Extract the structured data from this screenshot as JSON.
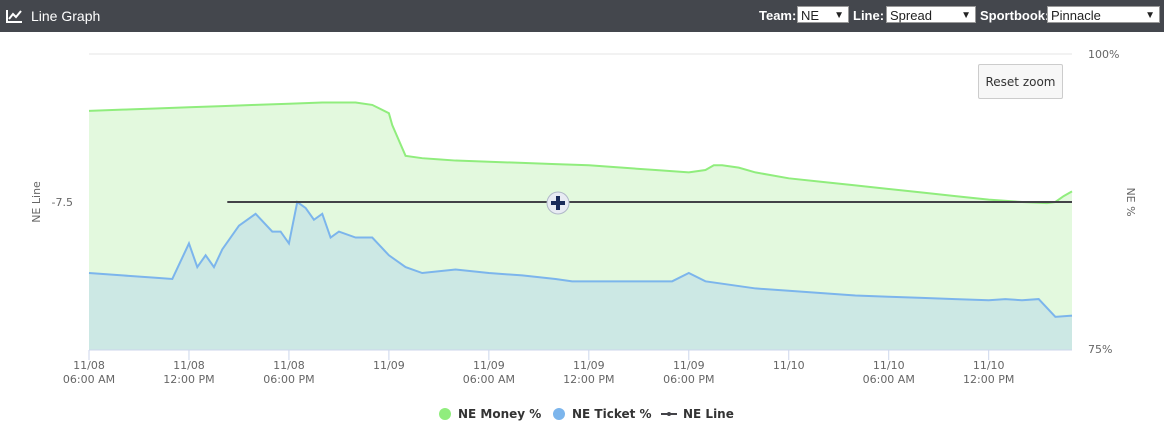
{
  "header": {
    "title": "Line Graph",
    "icon": "line-chart-icon",
    "team_label": "Team:",
    "team_value": "NE",
    "line_label": "Line:",
    "line_value": "Spread",
    "sportbook_label": "Sportbook:",
    "sportbook_value": "Pinnacle"
  },
  "reset_zoom_label": "Reset zoom",
  "chart_data": {
    "type": "area",
    "xlabel": "",
    "ylabel_left": "NE Line",
    "ylabel_right": "NE %",
    "left_ticks": [
      "-7.5"
    ],
    "right_ticks": [
      "100%",
      "75%"
    ],
    "right_ylim": [
      75,
      100
    ],
    "x_ticks": [
      {
        "date": "11/08",
        "time": "06:00 AM"
      },
      {
        "date": "11/08",
        "time": "12:00 PM"
      },
      {
        "date": "11/08",
        "time": "06:00 PM"
      },
      {
        "date": "11/09",
        "time": ""
      },
      {
        "date": "11/09",
        "time": "06:00 AM"
      },
      {
        "date": "11/09",
        "time": "12:00 PM"
      },
      {
        "date": "11/09",
        "time": "06:00 PM"
      },
      {
        "date": "11/10",
        "time": ""
      },
      {
        "date": "11/10",
        "time": "06:00 AM"
      },
      {
        "date": "11/10",
        "time": "12:00 PM"
      }
    ],
    "series": [
      {
        "name": "NE Money %",
        "color": "#90ed7d",
        "x": [
          0,
          2,
          4,
          6,
          8,
          10,
          12,
          14,
          15,
          16,
          17,
          18,
          18.2,
          19,
          20,
          21,
          22,
          24,
          26,
          28,
          30,
          32,
          34,
          36,
          37,
          37.5,
          38,
          39,
          40,
          42,
          44,
          46,
          48,
          50,
          52,
          54,
          56,
          57.5,
          58,
          58.5,
          59
        ],
        "values": [
          95.2,
          95.3,
          95.4,
          95.5,
          95.6,
          95.7,
          95.8,
          95.9,
          95.9,
          95.9,
          95.7,
          95.0,
          94.0,
          91.4,
          91.2,
          91.1,
          91.0,
          90.9,
          90.8,
          90.7,
          90.6,
          90.4,
          90.2,
          90.0,
          90.2,
          90.6,
          90.6,
          90.4,
          90.0,
          89.5,
          89.2,
          88.9,
          88.6,
          88.3,
          88.0,
          87.7,
          87.5,
          87.4,
          87.5,
          88.0,
          88.4
        ]
      },
      {
        "name": "NE Ticket %",
        "color": "#7cb5ec",
        "x": [
          0,
          2,
          4,
          5,
          5.5,
          6,
          6.5,
          7,
          7.5,
          8,
          9,
          10,
          11,
          11.5,
          12,
          12.5,
          13,
          13.5,
          14,
          14.5,
          15,
          16,
          17,
          18,
          19,
          20,
          22,
          24,
          26,
          28,
          29,
          30,
          31,
          32,
          33,
          34,
          35,
          36,
          37,
          38,
          39,
          40,
          42,
          44,
          46,
          48,
          50,
          52,
          54,
          55,
          56,
          57,
          58,
          59
        ],
        "values": [
          81.5,
          81.3,
          81.1,
          81.0,
          82.5,
          84.0,
          82.0,
          83.0,
          82.0,
          83.5,
          85.5,
          86.5,
          85.0,
          85.0,
          84.0,
          87.5,
          87.0,
          86.0,
          86.5,
          84.5,
          85.0,
          84.5,
          84.5,
          83.0,
          82.0,
          81.5,
          81.8,
          81.5,
          81.3,
          81.0,
          80.8,
          80.8,
          80.8,
          80.8,
          80.8,
          80.8,
          80.8,
          81.5,
          80.8,
          80.6,
          80.4,
          80.2,
          80.0,
          79.8,
          79.6,
          79.5,
          79.4,
          79.3,
          79.2,
          79.3,
          79.2,
          79.3,
          77.8,
          77.9
        ]
      },
      {
        "name": "NE Line",
        "color": "#434348",
        "x": [
          8.3,
          59
        ],
        "values": [
          -7.5,
          -7.5
        ]
      }
    ],
    "legend": {
      "money": "NE Money %",
      "ticket": "NE Ticket %",
      "line": "NE Line"
    },
    "legend_position": "bottom-center",
    "grid": true
  }
}
